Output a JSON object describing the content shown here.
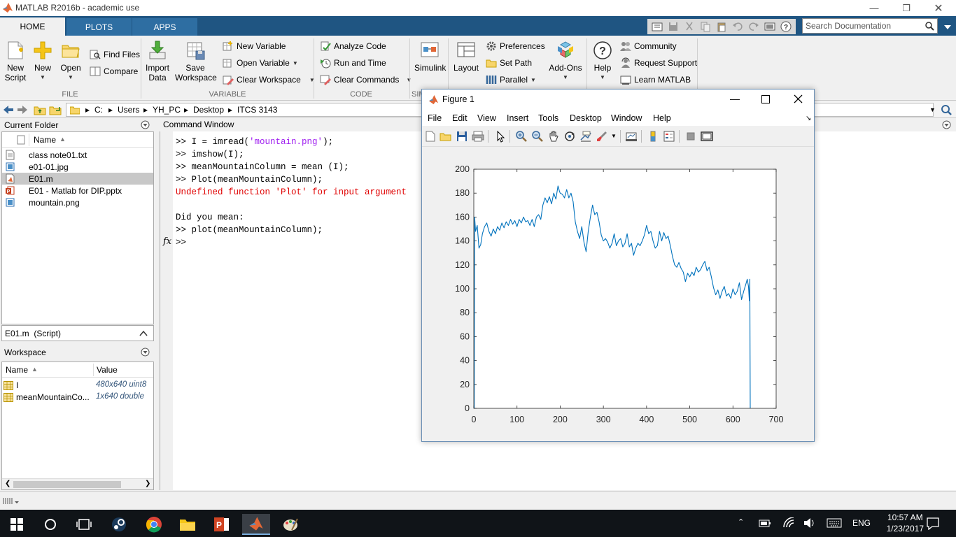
{
  "window": {
    "title": "MATLAB R2016b - academic use"
  },
  "tabs": [
    {
      "label": "HOME"
    },
    {
      "label": "PLOTS"
    },
    {
      "label": "APPS"
    }
  ],
  "search": {
    "placeholder": "Search Documentation"
  },
  "ribbon": {
    "file": {
      "label": "FILE",
      "new_script": "New\nScript",
      "new": "New",
      "open": "Open",
      "find_files": "Find Files",
      "compare": "Compare"
    },
    "variable": {
      "label": "VARIABLE",
      "import_data": "Import\nData",
      "save_workspace": "Save\nWorkspace",
      "new_variable": "New Variable",
      "open_variable": "Open Variable",
      "clear_workspace": "Clear Workspace"
    },
    "code": {
      "label": "CODE",
      "analyze_code": "Analyze Code",
      "run_and_time": "Run and Time",
      "clear_commands": "Clear Commands"
    },
    "simulink": {
      "label": "SIM",
      "simulink": "Simulink"
    },
    "environment": {
      "layout": "Layout",
      "preferences": "Preferences",
      "set_path": "Set Path",
      "parallel": "Parallel",
      "add_ons": "Add-Ons"
    },
    "resources": {
      "help": "Help",
      "community": "Community",
      "request_support": "Request Support",
      "learn_matlab": "Learn MATLAB"
    }
  },
  "path": {
    "crumbs": [
      "C:",
      "Users",
      "YH_PC",
      "Desktop",
      "ITCS 3143"
    ]
  },
  "current_folder": {
    "title": "Current Folder",
    "column": "Name",
    "files": [
      {
        "name": "class note01.txt",
        "kind": "txt"
      },
      {
        "name": "e01-01.jpg",
        "kind": "img"
      },
      {
        "name": "E01.m",
        "kind": "m",
        "selected": true
      },
      {
        "name": "E01 - Matlab for DIP.pptx",
        "kind": "ppt"
      },
      {
        "name": "mountain.png",
        "kind": "img"
      }
    ],
    "details": "E01.m  (Script)"
  },
  "workspace": {
    "title": "Workspace",
    "col_name": "Name",
    "col_value": "Value",
    "vars": [
      {
        "name": "I",
        "value": "480x640 uint8"
      },
      {
        "name": "meanMountainCo...",
        "value": "1x640 double"
      }
    ]
  },
  "command_window": {
    "title": "Command Window",
    "lines": [
      {
        "parts": [
          {
            "t": ">> I = imread(",
            "c": ""
          },
          {
            "t": "'mountain.png'",
            "c": "str"
          },
          {
            "t": ");",
            "c": ""
          }
        ]
      },
      {
        "parts": [
          {
            "t": ">> imshow(I);",
            "c": ""
          }
        ]
      },
      {
        "parts": [
          {
            "t": ">> meanMountainColumn = mean (I);",
            "c": ""
          }
        ]
      },
      {
        "parts": [
          {
            "t": ">> Plot(meanMountainColumn);",
            "c": ""
          }
        ]
      },
      {
        "parts": [
          {
            "t": "Undefined function 'Plot' for input argument",
            "c": "err"
          }
        ]
      },
      {
        "parts": [
          {
            "t": "",
            "c": ""
          }
        ]
      },
      {
        "parts": [
          {
            "t": "Did you mean:",
            "c": ""
          }
        ]
      },
      {
        "parts": [
          {
            "t": ">> plot(meanMountainColumn);",
            "c": ""
          }
        ]
      },
      {
        "parts": [
          {
            "t": ">> ",
            "c": ""
          }
        ]
      }
    ],
    "fx_label": "fx"
  },
  "figure": {
    "title": "Figure 1",
    "menu": [
      "File",
      "Edit",
      "View",
      "Insert",
      "Tools",
      "Desktop",
      "Window",
      "Help"
    ]
  },
  "chart_data": {
    "type": "line",
    "title": "",
    "xlabel": "",
    "ylabel": "",
    "xlim": [
      0,
      700
    ],
    "ylim": [
      0,
      200
    ],
    "xticks": [
      0,
      100,
      200,
      300,
      400,
      500,
      600,
      700
    ],
    "yticks": [
      0,
      20,
      40,
      60,
      80,
      100,
      120,
      140,
      160,
      180,
      200
    ],
    "grid": false,
    "color": "#0072bd",
    "series": [
      {
        "x": [
          1,
          2,
          4,
          8,
          12,
          16,
          20,
          25,
          30,
          35,
          40,
          45,
          50,
          55,
          60,
          65,
          70,
          75,
          80,
          85,
          90,
          95,
          100,
          105,
          110,
          115,
          120,
          125,
          130,
          135,
          140,
          145,
          150,
          155,
          160,
          165,
          170,
          175,
          180,
          185,
          190,
          195,
          198,
          200,
          205,
          210,
          215,
          220,
          225,
          230,
          235,
          240,
          245,
          250,
          255,
          260,
          265,
          270,
          275,
          280,
          285,
          290,
          295,
          300,
          305,
          310,
          315,
          320,
          325,
          330,
          335,
          340,
          345,
          350,
          355,
          360,
          365,
          370,
          375,
          380,
          385,
          390,
          395,
          400,
          405,
          410,
          415,
          420,
          425,
          430,
          435,
          440,
          445,
          450,
          455,
          460,
          465,
          470,
          475,
          480,
          485,
          490,
          495,
          500,
          505,
          510,
          515,
          520,
          525,
          530,
          535,
          540,
          545,
          550,
          555,
          560,
          565,
          570,
          575,
          580,
          585,
          590,
          595,
          600,
          605,
          610,
          615,
          620,
          625,
          630,
          633,
          636,
          638,
          639,
          640,
          640
        ],
        "y": [
          0,
          160,
          148,
          153,
          134,
          137,
          146,
          152,
          155,
          148,
          144,
          150,
          146,
          152,
          149,
          155,
          151,
          156,
          153,
          158,
          154,
          157,
          152,
          158,
          155,
          160,
          156,
          157,
          153,
          158,
          152,
          160,
          162,
          158,
          170,
          176,
          172,
          177,
          171,
          180,
          175,
          186,
          182,
          180,
          179,
          176,
          183,
          176,
          180,
          173,
          156,
          148,
          142,
          152,
          139,
          131,
          148,
          160,
          170,
          162,
          164,
          156,
          145,
          140,
          142,
          139,
          134,
          138,
          146,
          136,
          140,
          142,
          135,
          138,
          146,
          135,
          138,
          128,
          134,
          138,
          136,
          140,
          145,
          153,
          146,
          148,
          140,
          134,
          136,
          148,
          140,
          147,
          142,
          144,
          136,
          127,
          120,
          118,
          122,
          117,
          114,
          106,
          113,
          110,
          114,
          111,
          118,
          114,
          116,
          120,
          123,
          115,
          118,
          110,
          101,
          95,
          99,
          92,
          98,
          102,
          94,
          96,
          92,
          100,
          95,
          98,
          105,
          91,
          98,
          104,
          108,
          102,
          90,
          108,
          0,
          0
        ]
      }
    ]
  },
  "taskbar": {
    "lang": "ENG",
    "time": "10:57 AM",
    "date": "1/23/2017"
  }
}
